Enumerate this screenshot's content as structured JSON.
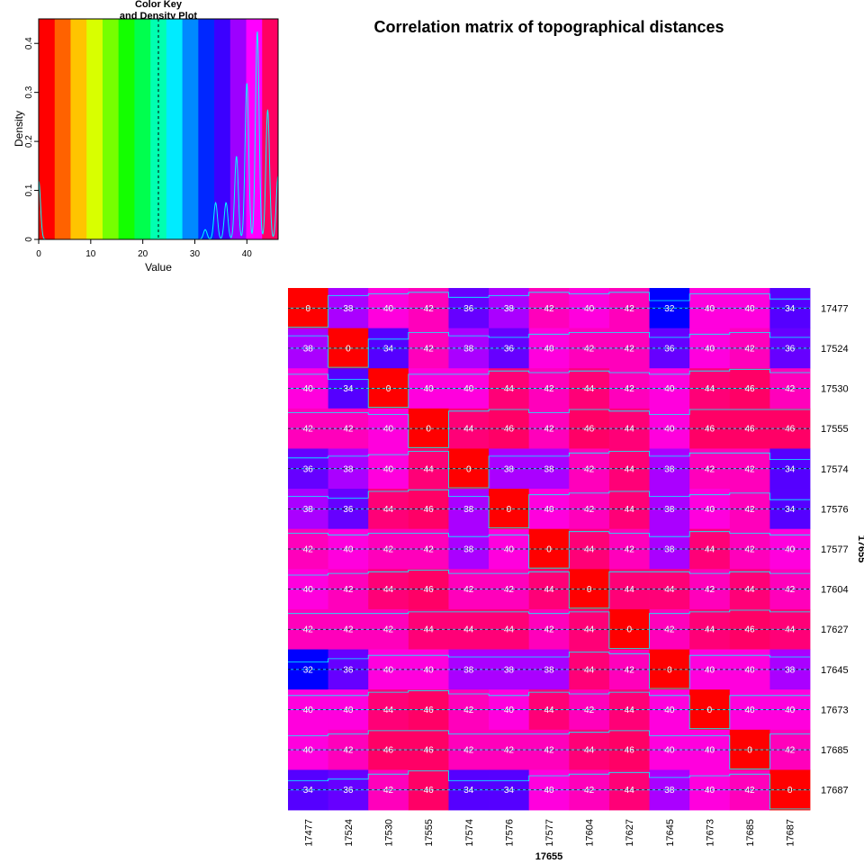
{
  "title": "Correlation matrix of topographical distances",
  "color_key": {
    "title_line1": "Color Key",
    "title_line2": "and Density Plot",
    "xlabel": "Value",
    "ylabel": "Density",
    "x_ticks": [
      "0",
      "10",
      "20",
      "30",
      "40"
    ],
    "y_ticks": [
      "0",
      "0.1",
      "0.2",
      "0.3",
      "0.4"
    ],
    "xlim": [
      0,
      46
    ],
    "ylim": [
      0,
      0.45
    ],
    "mean_line": 23,
    "breaks": [
      0,
      3.07,
      6.13,
      9.2,
      12.27,
      15.33,
      18.4,
      21.47,
      24.53,
      27.6,
      30.67,
      33.73,
      36.8,
      39.87,
      42.93,
      46
    ],
    "colors": [
      "#FF0000",
      "#FF6200",
      "#FFC400",
      "#D8FF00",
      "#76FF00",
      "#14FF00",
      "#00FF4E",
      "#00FFB1",
      "#00EBFF",
      "#0089FF",
      "#0027FF",
      "#3B00FF",
      "#9D00FF",
      "#FF00FF",
      "#FF0062"
    ],
    "density_peaks": [
      {
        "x": 0,
        "density": 0.12
      },
      {
        "x": 32,
        "density": 0.02
      },
      {
        "x": 34,
        "density": 0.075
      },
      {
        "x": 36,
        "density": 0.075
      },
      {
        "x": 38,
        "density": 0.17
      },
      {
        "x": 40,
        "density": 0.32
      },
      {
        "x": 42,
        "density": 0.425
      },
      {
        "x": 44,
        "density": 0.265
      },
      {
        "x": 46,
        "density": 0.13
      }
    ]
  },
  "overlap_text": "17655",
  "chart_data": {
    "type": "heatmap",
    "title": "Correlation matrix of topographical distances",
    "rows": [
      "17477",
      "17524",
      "17530",
      "17555",
      "17574",
      "17576",
      "17577",
      "17604",
      "17627",
      "17645",
      "17673",
      "17685",
      "17687"
    ],
    "columns": [
      "17477",
      "17524",
      "17530",
      "17555",
      "17574",
      "17576",
      "17577",
      "17604",
      "17627",
      "17645",
      "17673",
      "17685",
      "17687"
    ],
    "values": [
      [
        0,
        38,
        40,
        42,
        36,
        38,
        42,
        40,
        42,
        32,
        40,
        40,
        34
      ],
      [
        38,
        0,
        34,
        42,
        38,
        36,
        40,
        42,
        42,
        36,
        40,
        42,
        36
      ],
      [
        40,
        34,
        0,
        40,
        40,
        44,
        42,
        44,
        42,
        40,
        44,
        46,
        42
      ],
      [
        42,
        42,
        40,
        0,
        44,
        46,
        42,
        46,
        44,
        40,
        46,
        46,
        46
      ],
      [
        36,
        38,
        40,
        44,
        0,
        38,
        38,
        42,
        44,
        38,
        42,
        42,
        34
      ],
      [
        38,
        36,
        44,
        46,
        38,
        0,
        40,
        42,
        44,
        38,
        40,
        42,
        34
      ],
      [
        42,
        40,
        42,
        42,
        38,
        40,
        0,
        44,
        42,
        38,
        44,
        42,
        40
      ],
      [
        40,
        42,
        44,
        46,
        42,
        42,
        44,
        0,
        44,
        44,
        42,
        44,
        42
      ],
      [
        42,
        42,
        42,
        44,
        44,
        44,
        42,
        44,
        0,
        42,
        44,
        46,
        44
      ],
      [
        32,
        36,
        40,
        40,
        38,
        38,
        38,
        44,
        42,
        0,
        40,
        40,
        38
      ],
      [
        40,
        40,
        44,
        46,
        42,
        40,
        44,
        42,
        44,
        40,
        0,
        40,
        40
      ],
      [
        40,
        42,
        46,
        46,
        42,
        42,
        42,
        44,
        46,
        40,
        40,
        0,
        42
      ],
      [
        34,
        36,
        42,
        46,
        34,
        34,
        40,
        42,
        44,
        38,
        40,
        42,
        0
      ]
    ],
    "value_colors": {
      "0": "#FF0000",
      "32": "#0000FF",
      "34": "#5500FF",
      "36": "#6600FF",
      "38": "#AA00FF",
      "40": "#FF00DD",
      "42": "#FF00BB",
      "44": "#FF0077",
      "46": "#FF0066"
    },
    "trace_color": "#00FFFF"
  }
}
